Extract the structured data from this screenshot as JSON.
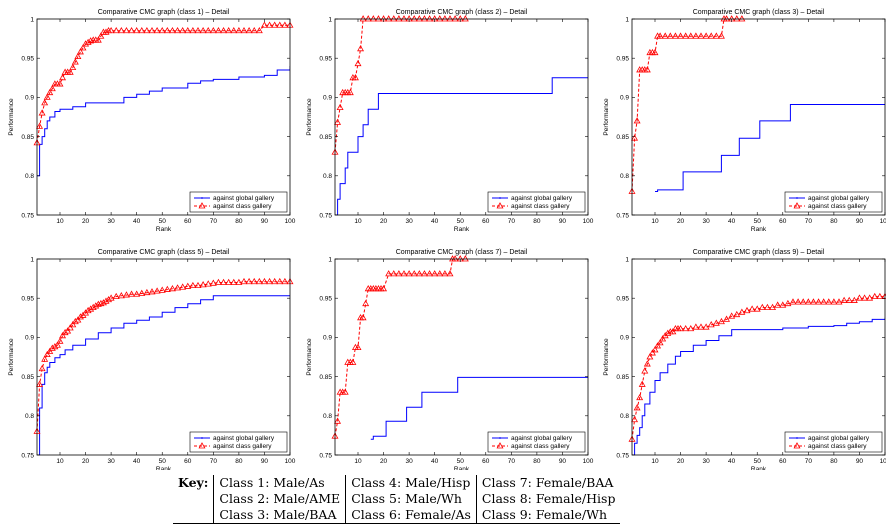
{
  "chart_data": [
    {
      "type": "line",
      "title": "Comparative CMC graph (class 1) – Detail",
      "xlabel": "Rank",
      "ylabel": "Performance",
      "xlim": [
        1,
        100
      ],
      "ylim": [
        0.75,
        1
      ],
      "xticks": [
        "10",
        "20",
        "30",
        "40",
        "50",
        "60",
        "70",
        "80",
        "90",
        "100"
      ],
      "yticks": [
        "0.75",
        "0.8",
        "0.85",
        "0.9",
        "0.95",
        "1"
      ],
      "legend": "bottom-right",
      "series": [
        {
          "name": "against global gallery",
          "color": "#0000ff",
          "style": "solid",
          "x": [
            1,
            2,
            3,
            4,
            5,
            6,
            8,
            10,
            12,
            15,
            20,
            30,
            35,
            40,
            45,
            50,
            60,
            65,
            70,
            80,
            90,
            95,
            100
          ],
          "y": [
            0.8,
            0.84,
            0.85,
            0.86,
            0.87,
            0.875,
            0.882,
            0.885,
            0.885,
            0.888,
            0.893,
            0.893,
            0.9,
            0.904,
            0.908,
            0.912,
            0.918,
            0.921,
            0.923,
            0.926,
            0.928,
            0.935,
            0.94
          ]
        },
        {
          "name": "against class gallery",
          "color": "#ff0000",
          "style": "dashed",
          "marker": "triangle",
          "x": [
            1,
            2,
            3,
            4,
            5,
            6,
            7,
            8,
            9,
            10,
            11,
            12,
            13,
            14,
            15,
            16,
            17,
            18,
            19,
            20,
            21,
            22,
            23,
            24,
            25,
            26,
            27,
            28,
            29,
            30,
            32,
            34,
            36,
            38,
            40,
            42,
            44,
            46,
            48,
            50,
            52,
            54,
            56,
            58,
            60,
            62,
            64,
            66,
            68,
            70,
            72,
            74,
            76,
            78,
            80,
            82,
            84,
            86,
            88,
            90,
            92,
            94,
            96,
            98,
            100
          ],
          "y": [
            0.842,
            0.863,
            0.88,
            0.893,
            0.9,
            0.906,
            0.911,
            0.917,
            0.917,
            0.917,
            0.925,
            0.932,
            0.932,
            0.932,
            0.938,
            0.945,
            0.952,
            0.958,
            0.963,
            0.968,
            0.97,
            0.972,
            0.973,
            0.973,
            0.973,
            0.978,
            0.983,
            0.983,
            0.985,
            0.985,
            0.985,
            0.985,
            0.985,
            0.985,
            0.985,
            0.985,
            0.985,
            0.985,
            0.985,
            0.985,
            0.985,
            0.985,
            0.985,
            0.985,
            0.985,
            0.985,
            0.985,
            0.985,
            0.985,
            0.985,
            0.985,
            0.985,
            0.985,
            0.985,
            0.985,
            0.985,
            0.985,
            0.985,
            0.985,
            0.992,
            0.992,
            0.992,
            0.992,
            0.992,
            0.992
          ]
        }
      ]
    },
    {
      "type": "line",
      "title": "Comparative CMC graph (class 2) – Detail",
      "xlabel": "Rank",
      "ylabel": "Performance",
      "xlim": [
        1,
        100
      ],
      "ylim": [
        0.75,
        1
      ],
      "xticks": [
        "10",
        "20",
        "30",
        "40",
        "50",
        "60",
        "70",
        "80",
        "90",
        "100"
      ],
      "yticks": [
        "0.75",
        "0.8",
        "0.85",
        "0.9",
        "0.95",
        "1"
      ],
      "legend": "bottom-right",
      "series": [
        {
          "name": "against global gallery",
          "color": "#0000ff",
          "style": "solid",
          "x": [
            1,
            2,
            3,
            4,
            5,
            6,
            8,
            10,
            12,
            14,
            16,
            18,
            85,
            86,
            100
          ],
          "y": [
            0.75,
            0.77,
            0.79,
            0.79,
            0.81,
            0.83,
            0.83,
            0.85,
            0.865,
            0.885,
            0.885,
            0.905,
            0.905,
            0.925,
            0.925
          ]
        },
        {
          "name": "against class gallery",
          "color": "#ff0000",
          "style": "dashed",
          "marker": "triangle",
          "x": [
            1,
            2,
            3,
            4,
            5,
            6,
            7,
            8,
            9,
            10,
            11,
            12,
            14,
            16,
            18,
            20,
            22,
            24,
            26,
            28,
            30,
            32,
            34,
            36,
            38,
            40,
            42,
            44,
            46,
            48,
            50,
            52
          ],
          "y": [
            0.83,
            0.868,
            0.887,
            0.906,
            0.906,
            0.906,
            0.906,
            0.925,
            0.925,
            0.943,
            0.962,
            1,
            1,
            1,
            1,
            1,
            1,
            1,
            1,
            1,
            1,
            1,
            1,
            1,
            1,
            1,
            1,
            1,
            1,
            1,
            1,
            1
          ]
        }
      ]
    },
    {
      "type": "line",
      "title": "Comparative CMC graph (class 3) – Detail",
      "xlabel": "Rank",
      "ylabel": "Performance",
      "xlim": [
        1,
        100
      ],
      "ylim": [
        0.75,
        1
      ],
      "xticks": [
        "10",
        "20",
        "30",
        "40",
        "50",
        "60",
        "70",
        "80",
        "90",
        "100"
      ],
      "yticks": [
        "0.75",
        "0.8",
        "0.85",
        "0.9",
        "0.95",
        "1"
      ],
      "legend": "bottom-right",
      "series": [
        {
          "name": "against global gallery",
          "color": "#0000ff",
          "style": "solid",
          "x": [
            10,
            11,
            20,
            21,
            35,
            36,
            42,
            43,
            50,
            51,
            62,
            63,
            100
          ],
          "y": [
            0.78,
            0.782,
            0.782,
            0.805,
            0.805,
            0.826,
            0.826,
            0.848,
            0.848,
            0.87,
            0.87,
            0.891,
            0.891
          ]
        },
        {
          "name": "against class gallery",
          "color": "#ff0000",
          "style": "dashed",
          "marker": "triangle",
          "x": [
            1,
            2,
            3,
            4,
            5,
            6,
            7,
            8,
            9,
            10,
            11,
            12,
            14,
            16,
            18,
            20,
            22,
            24,
            26,
            28,
            30,
            32,
            34,
            36,
            37,
            38,
            40,
            42,
            44
          ],
          "y": [
            0.78,
            0.848,
            0.87,
            0.935,
            0.935,
            0.935,
            0.935,
            0.957,
            0.957,
            0.957,
            0.978,
            0.978,
            0.978,
            0.978,
            0.978,
            0.978,
            0.978,
            0.978,
            0.978,
            0.978,
            0.978,
            0.978,
            0.978,
            0.978,
            1,
            1,
            1,
            1,
            1
          ]
        }
      ]
    },
    {
      "type": "line",
      "title": "Comparative CMC graph (class 5) – Detail",
      "xlabel": "Rank",
      "ylabel": "Performance",
      "xlim": [
        1,
        100
      ],
      "ylim": [
        0.75,
        1
      ],
      "xticks": [
        "10",
        "20",
        "30",
        "40",
        "50",
        "60",
        "70",
        "80",
        "90",
        "100"
      ],
      "yticks": [
        "0.75",
        "0.8",
        "0.85",
        "0.9",
        "0.95",
        "1"
      ],
      "legend": "bottom-right",
      "series": [
        {
          "name": "against global gallery",
          "color": "#0000ff",
          "style": "solid",
          "x": [
            1,
            2,
            3,
            4,
            5,
            6,
            8,
            10,
            12,
            15,
            20,
            25,
            30,
            35,
            40,
            45,
            50,
            55,
            60,
            65,
            70,
            100
          ],
          "y": [
            0.75,
            0.81,
            0.84,
            0.855,
            0.862,
            0.868,
            0.874,
            0.878,
            0.884,
            0.89,
            0.898,
            0.906,
            0.912,
            0.918,
            0.922,
            0.926,
            0.932,
            0.938,
            0.943,
            0.948,
            0.953,
            0.953
          ]
        },
        {
          "name": "against class gallery",
          "color": "#ff0000",
          "style": "dashed",
          "marker": "triangle",
          "x": [
            1,
            2,
            3,
            4,
            5,
            6,
            7,
            8,
            9,
            10,
            11,
            12,
            13,
            14,
            15,
            16,
            17,
            18,
            19,
            20,
            21,
            22,
            23,
            24,
            25,
            26,
            27,
            28,
            29,
            30,
            32,
            34,
            36,
            38,
            40,
            42,
            44,
            46,
            48,
            50,
            52,
            54,
            56,
            58,
            60,
            62,
            64,
            66,
            68,
            70,
            72,
            74,
            76,
            78,
            80,
            82,
            84,
            86,
            88,
            90,
            92,
            94,
            96,
            98,
            100
          ],
          "y": [
            0.78,
            0.84,
            0.86,
            0.872,
            0.878,
            0.882,
            0.886,
            0.888,
            0.89,
            0.895,
            0.902,
            0.906,
            0.908,
            0.912,
            0.916,
            0.92,
            0.922,
            0.926,
            0.928,
            0.931,
            0.934,
            0.936,
            0.938,
            0.94,
            0.942,
            0.943,
            0.944,
            0.946,
            0.948,
            0.95,
            0.952,
            0.953,
            0.954,
            0.955,
            0.955,
            0.956,
            0.957,
            0.958,
            0.959,
            0.96,
            0.961,
            0.962,
            0.963,
            0.964,
            0.965,
            0.966,
            0.966,
            0.967,
            0.968,
            0.969,
            0.97,
            0.97,
            0.97,
            0.97,
            0.97,
            0.971,
            0.971,
            0.971,
            0.971,
            0.971,
            0.971,
            0.971,
            0.971,
            0.971,
            0.971
          ]
        }
      ]
    },
    {
      "type": "line",
      "title": "Comparative CMC graph (class 7) – Detail",
      "xlabel": "Rank",
      "ylabel": "Performance",
      "xlim": [
        1,
        100
      ],
      "ylim": [
        0.75,
        1
      ],
      "xticks": [
        "10",
        "20",
        "30",
        "40",
        "50",
        "60",
        "70",
        "80",
        "90",
        "100"
      ],
      "yticks": [
        "0.75",
        "0.8",
        "0.85",
        "0.9",
        "0.95",
        "1"
      ],
      "legend": "bottom-right",
      "series": [
        {
          "name": "against global gallery",
          "color": "#0000ff",
          "style": "solid",
          "x": [
            15,
            16,
            20,
            21,
            28,
            29,
            34,
            35,
            45,
            46,
            48,
            49,
            100
          ],
          "y": [
            0.77,
            0.774,
            0.774,
            0.793,
            0.793,
            0.811,
            0.811,
            0.83,
            0.83,
            0.83,
            0.83,
            0.849,
            0.849
          ]
        },
        {
          "name": "against class gallery",
          "color": "#ff0000",
          "style": "dashed",
          "marker": "triangle",
          "x": [
            1,
            2,
            3,
            4,
            5,
            6,
            7,
            8,
            9,
            10,
            11,
            12,
            13,
            14,
            15,
            16,
            17,
            18,
            19,
            20,
            22,
            24,
            26,
            28,
            30,
            32,
            34,
            36,
            38,
            40,
            42,
            44,
            46,
            47,
            48,
            50,
            52
          ],
          "y": [
            0.774,
            0.793,
            0.83,
            0.83,
            0.83,
            0.868,
            0.868,
            0.868,
            0.887,
            0.887,
            0.925,
            0.925,
            0.943,
            0.962,
            0.962,
            0.962,
            0.962,
            0.962,
            0.962,
            0.962,
            0.981,
            0.981,
            0.981,
            0.981,
            0.981,
            0.981,
            0.981,
            0.981,
            0.981,
            0.981,
            0.981,
            0.981,
            0.981,
            1,
            1,
            1,
            1
          ]
        }
      ]
    },
    {
      "type": "line",
      "title": "Comparative CMC graph (class 9) – Detail",
      "xlabel": "Rank",
      "ylabel": "Performance",
      "xlim": [
        1,
        100
      ],
      "ylim": [
        0.75,
        1
      ],
      "xticks": [
        "10",
        "20",
        "30",
        "40",
        "50",
        "60",
        "70",
        "80",
        "90",
        "100"
      ],
      "yticks": [
        "0.75",
        "0.8",
        "0.85",
        "0.9",
        "0.95",
        "1"
      ],
      "legend": "bottom-right",
      "series": [
        {
          "name": "against global gallery",
          "color": "#0000ff",
          "style": "solid",
          "x": [
            1,
            2,
            3,
            4,
            5,
            6,
            8,
            10,
            12,
            15,
            18,
            20,
            25,
            30,
            35,
            40,
            50,
            60,
            70,
            80,
            85,
            90,
            95,
            100
          ],
          "y": [
            0.75,
            0.765,
            0.775,
            0.785,
            0.8,
            0.815,
            0.83,
            0.845,
            0.855,
            0.866,
            0.876,
            0.882,
            0.89,
            0.896,
            0.902,
            0.91,
            0.91,
            0.912,
            0.914,
            0.915,
            0.918,
            0.92,
            0.923,
            0.925
          ]
        },
        {
          "name": "against class gallery",
          "color": "#ff0000",
          "style": "dashed",
          "marker": "triangle",
          "x": [
            1,
            2,
            3,
            4,
            5,
            6,
            7,
            8,
            9,
            10,
            11,
            12,
            13,
            14,
            15,
            16,
            17,
            18,
            19,
            20,
            22,
            24,
            26,
            28,
            30,
            32,
            34,
            36,
            38,
            40,
            42,
            44,
            46,
            48,
            50,
            52,
            54,
            56,
            58,
            60,
            62,
            64,
            66,
            68,
            70,
            72,
            74,
            76,
            78,
            80,
            82,
            84,
            86,
            88,
            90,
            92,
            94,
            96,
            98,
            100
          ],
          "y": [
            0.77,
            0.795,
            0.81,
            0.823,
            0.84,
            0.857,
            0.866,
            0.875,
            0.88,
            0.884,
            0.889,
            0.893,
            0.898,
            0.902,
            0.905,
            0.907,
            0.907,
            0.911,
            0.911,
            0.911,
            0.911,
            0.911,
            0.913,
            0.913,
            0.913,
            0.916,
            0.918,
            0.92,
            0.923,
            0.927,
            0.929,
            0.932,
            0.934,
            0.936,
            0.936,
            0.938,
            0.938,
            0.938,
            0.941,
            0.941,
            0.943,
            0.945,
            0.945,
            0.945,
            0.945,
            0.945,
            0.945,
            0.945,
            0.945,
            0.945,
            0.945,
            0.947,
            0.947,
            0.947,
            0.95,
            0.95,
            0.95,
            0.952,
            0.952,
            0.952
          ]
        }
      ]
    }
  ],
  "key": {
    "label": "Key:",
    "rows": [
      [
        "Class 1: Male/As",
        "Class 4: Male/Hisp",
        "Class 7: Female/BAA"
      ],
      [
        "Class 2: Male/AME",
        "Class 5: Male/Wh",
        "Class 8: Female/Hisp"
      ],
      [
        "Class 3: Male/BAA",
        "Class 6: Female/As",
        "Class 9: Female/Wh"
      ]
    ]
  }
}
